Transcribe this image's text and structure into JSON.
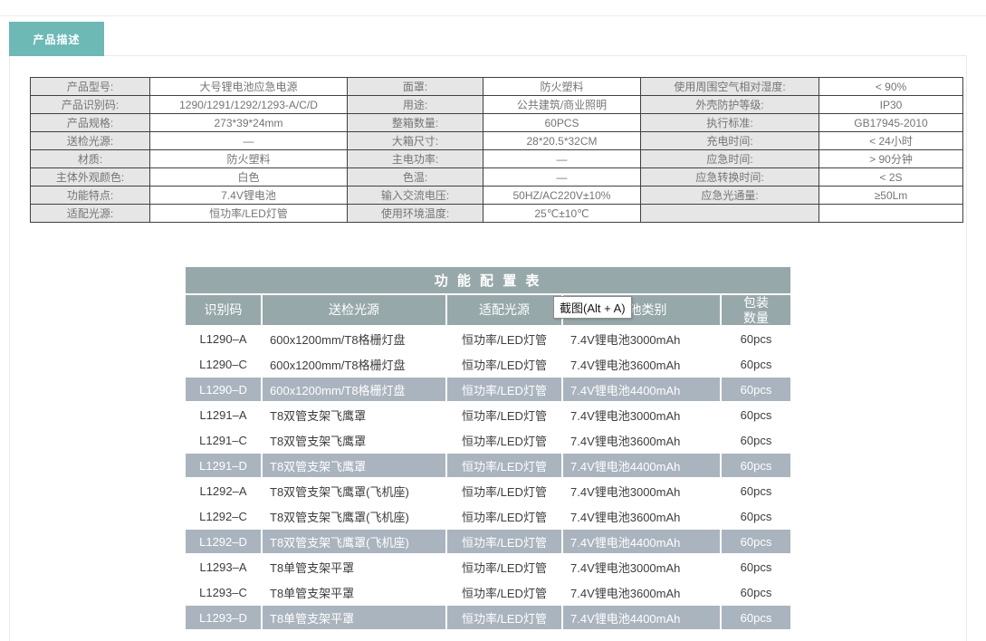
{
  "page": {
    "tab_label": "产品描述"
  },
  "spec_table": {
    "rows": [
      [
        "产品型号:",
        "大号锂电池应急电源",
        "面罩:",
        "防火塑料",
        "使用周围空气相对湿度:",
        "< 90%"
      ],
      [
        "产品识别码:",
        "1290/1291/1292/1293-A/C/D",
        "用途:",
        "公共建筑/商业照明",
        "外壳防护等级:",
        "IP30"
      ],
      [
        "产品规格:",
        "273*39*24mm",
        "整箱数量:",
        "60PCS",
        "执行标准:",
        "GB17945-2010"
      ],
      [
        "送检光源:",
        "—",
        "大箱尺寸:",
        "28*20.5*32CM",
        "充电时间:",
        "< 24小时"
      ],
      [
        "材质:",
        "防火塑料",
        "主电功率:",
        "—",
        "应急时间:",
        "> 90分钟"
      ],
      [
        "主体外观颜色:",
        "白色",
        "色温:",
        "—",
        "应急转换时间:",
        "< 2S"
      ],
      [
        "功能特点:",
        "7.4V锂电池",
        "输入交流电压:",
        "50HZ/AC220V±10%",
        "应急光通量:",
        "≥50Lm"
      ],
      [
        "适配光源:",
        "恒功率/LED灯管",
        "使用环境温度:",
        "25℃±10℃",
        "",
        ""
      ]
    ]
  },
  "config_table": {
    "title": "功 能 配 置 表",
    "headers": [
      "识别码",
      "送检光源",
      "适配光源",
      "电池类别",
      "包装\n数量"
    ],
    "rows": [
      {
        "id": "L1290–A",
        "tested_light": "600x1200mm/T8格栅灯盘",
        "adapted_light": "恒功率/LED灯管",
        "battery": "7.4V锂电池3000mAh",
        "qty": "60pcs",
        "highlighted": false
      },
      {
        "id": "L1290–C",
        "tested_light": "600x1200mm/T8格栅灯盘",
        "adapted_light": "恒功率/LED灯管",
        "battery": "7.4V锂电池3600mAh",
        "qty": "60pcs",
        "highlighted": false
      },
      {
        "id": "L1290–D",
        "tested_light": "600x1200mm/T8格栅灯盘",
        "adapted_light": "恒功率/LED灯管",
        "battery": "7.4V锂电池4400mAh",
        "qty": "60pcs",
        "highlighted": true
      },
      {
        "id": "L1291–A",
        "tested_light": "T8双管支架飞鹰罩",
        "adapted_light": "恒功率/LED灯管",
        "battery": "7.4V锂电池3000mAh",
        "qty": "60pcs",
        "highlighted": false
      },
      {
        "id": "L1291–C",
        "tested_light": "T8双管支架飞鹰罩",
        "adapted_light": "恒功率/LED灯管",
        "battery": "7.4V锂电池3600mAh",
        "qty": "60pcs",
        "highlighted": false
      },
      {
        "id": "L1291–D",
        "tested_light": "T8双管支架飞鹰罩",
        "adapted_light": "恒功率/LED灯管",
        "battery": "7.4V锂电池4400mAh",
        "qty": "60pcs",
        "highlighted": true
      },
      {
        "id": "L1292–A",
        "tested_light": "T8双管支架飞鹰罩(飞机座)",
        "adapted_light": "恒功率/LED灯管",
        "battery": "7.4V锂电池3000mAh",
        "qty": "60pcs",
        "highlighted": false
      },
      {
        "id": "L1292–C",
        "tested_light": "T8双管支架飞鹰罩(飞机座)",
        "adapted_light": "恒功率/LED灯管",
        "battery": "7.4V锂电池3600mAh",
        "qty": "60pcs",
        "highlighted": false
      },
      {
        "id": "L1292–D",
        "tested_light": "T8双管支架飞鹰罩(飞机座)",
        "adapted_light": "恒功率/LED灯管",
        "battery": "7.4V锂电池4400mAh",
        "qty": "60pcs",
        "highlighted": true
      },
      {
        "id": "L1293–A",
        "tested_light": "T8单管支架平罩",
        "adapted_light": "恒功率/LED灯管",
        "battery": "7.4V锂电池3000mAh",
        "qty": "60pcs",
        "highlighted": false
      },
      {
        "id": "L1293–C",
        "tested_light": "T8单管支架平罩",
        "adapted_light": "恒功率/LED灯管",
        "battery": "7.4V锂电池3600mAh",
        "qty": "60pcs",
        "highlighted": false
      },
      {
        "id": "L1293–D",
        "tested_light": "T8单管支架平罩",
        "adapted_light": "恒功率/LED灯管",
        "battery": "7.4V锂电池4400mAh",
        "qty": "60pcs",
        "highlighted": true
      }
    ]
  },
  "tooltip": {
    "label": "截图(Alt + A)"
  },
  "colors": {
    "tab_teal": "#6cb9b6",
    "config_header_bg": "#96a8aa",
    "highlight_row_bg": "#aab4be",
    "spec_label_bg": "#e6e6e6",
    "spec_border": "#404040",
    "spec_text": "#757575",
    "config_body_text": "#3d3d3d",
    "content_border": "#eaeaea"
  }
}
